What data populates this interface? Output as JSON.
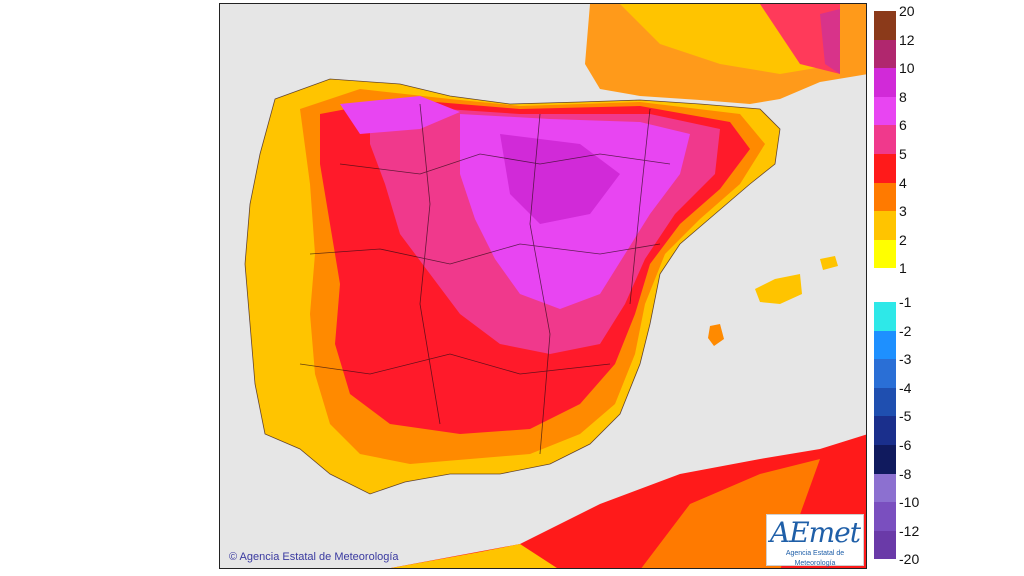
{
  "copyright": "© Agencia Estatal de Meteorología",
  "logo": {
    "mark": "AEmet",
    "subtitle": "Agencia Estatal de Meteorología"
  },
  "legend": {
    "positive": [
      {
        "label": "20",
        "color": "#8b3a1a"
      },
      {
        "label": "12",
        "color": "#b0276e"
      },
      {
        "label": "10",
        "color": "#d12ad8"
      },
      {
        "label": "8",
        "color": "#e845f2"
      },
      {
        "label": "6",
        "color": "#f0398c"
      },
      {
        "label": "5",
        "color": "#ff1a1a"
      },
      {
        "label": "4",
        "color": "#ff7a00"
      },
      {
        "label": "3",
        "color": "#ffc400"
      },
      {
        "label": "2",
        "color": "#ffff00"
      },
      {
        "label": "1",
        "color": ""
      }
    ],
    "negative": [
      {
        "label": "-1",
        "color": "#2ee8e8"
      },
      {
        "label": "-2",
        "color": "#1e90ff"
      },
      {
        "label": "-3",
        "color": "#2a6fd6"
      },
      {
        "label": "-4",
        "color": "#1f4fb0"
      },
      {
        "label": "-5",
        "color": "#1a2f8c"
      },
      {
        "label": "-6",
        "color": "#101a5e"
      },
      {
        "label": "-8",
        "color": "#8c70d0"
      },
      {
        "label": "-10",
        "color": "#7a4fbf"
      },
      {
        "label": "-12",
        "color": "#6a3aa8"
      },
      {
        "label": "-20",
        "color": ""
      }
    ]
  }
}
